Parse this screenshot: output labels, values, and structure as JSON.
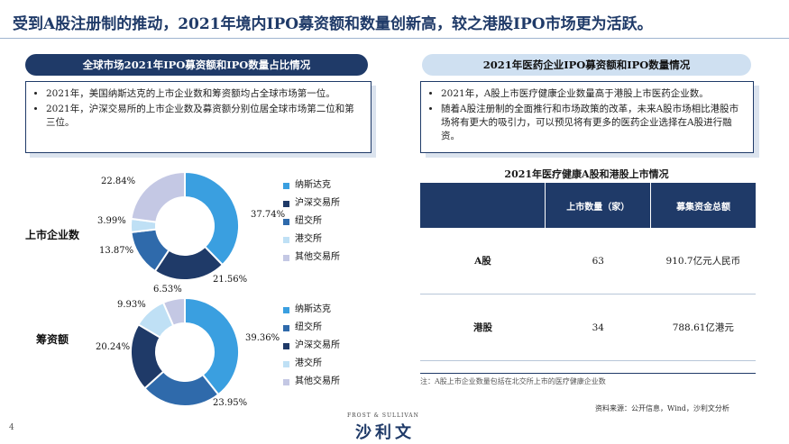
{
  "title": "受到A股注册制的推动，2021年境内IPO募资额和数量创新高，较之港股IPO市场更为活跃。",
  "left": {
    "header": "全球市场2021年IPO募资额和IPO数量占比情况",
    "bullets": [
      "2021年，美国纳斯达克的上市企业数和筹资额均占全球市场第一位。",
      "2021年，沪深交易所的上市企业数及募资额分别位居全球市场第二位和第三位。"
    ]
  },
  "right": {
    "header": "2021年医药企业IPO募资额和IPO数量情况",
    "bullets": [
      "2021年，A股上市医疗健康企业数量高于港股上市医药企业数。",
      "随着A股注册制的全面推行和市场政策的改革，未来A股市场相比港股市场将有更大的吸引力，可以预见将有更多的医药企业选择在A股进行融资。"
    ],
    "table_title": "2021年医疗健康A股和港股上市情况",
    "table_headers": [
      "",
      "上市数量（家）",
      "募集资金总额"
    ],
    "table_rows": [
      [
        "A股",
        "63",
        "910.7亿元人民币"
      ],
      [
        "港股",
        "34",
        "788.61亿港元"
      ]
    ],
    "note": "注：A股上市企业数量包括在北交所上市的医疗健康企业数",
    "source": "资料来源：公开信息，Wind，沙利文分析"
  },
  "footer": {
    "page": "4",
    "brand_en": "FROST & SULLIVAN",
    "brand_cn": "沙利文"
  },
  "colors": {
    "navy": "#1f3a68",
    "blue": "#3a9fe0",
    "steel": "#2f6aab",
    "lightblue": "#bfe0f5",
    "lavender": "#c4c8e4"
  },
  "chart_data": [
    {
      "type": "pie",
      "title": "上市企业数",
      "categories": [
        "纳斯达克",
        "沪深交易所",
        "纽交所",
        "港交所",
        "其他交易所"
      ],
      "values": [
        37.74,
        21.56,
        13.87,
        3.99,
        22.84
      ],
      "labels": [
        "37.74%",
        "21.56%",
        "13.87%",
        "3.99%",
        "22.84%"
      ],
      "colors": [
        "#3a9fe0",
        "#1f3a68",
        "#2f6aab",
        "#bfe0f5",
        "#c4c8e4"
      ],
      "legend": [
        "纳斯达克",
        "沪深交易所",
        "纽交所",
        "港交所",
        "其他交易所"
      ]
    },
    {
      "type": "pie",
      "title": "筹资额",
      "categories": [
        "纳斯达克",
        "纽交所",
        "沪深交易所",
        "港交所",
        "其他交易所"
      ],
      "values": [
        39.36,
        23.95,
        20.24,
        9.93,
        6.53
      ],
      "labels": [
        "39.36%",
        "23.95%",
        "20.24%",
        "9.93%",
        "6.53%"
      ],
      "colors": [
        "#3a9fe0",
        "#2f6aab",
        "#1f3a68",
        "#bfe0f5",
        "#c4c8e4"
      ],
      "legend": [
        "纳斯达克",
        "纽交所",
        "沪深交易所",
        "港交所",
        "其他交易所"
      ]
    }
  ]
}
